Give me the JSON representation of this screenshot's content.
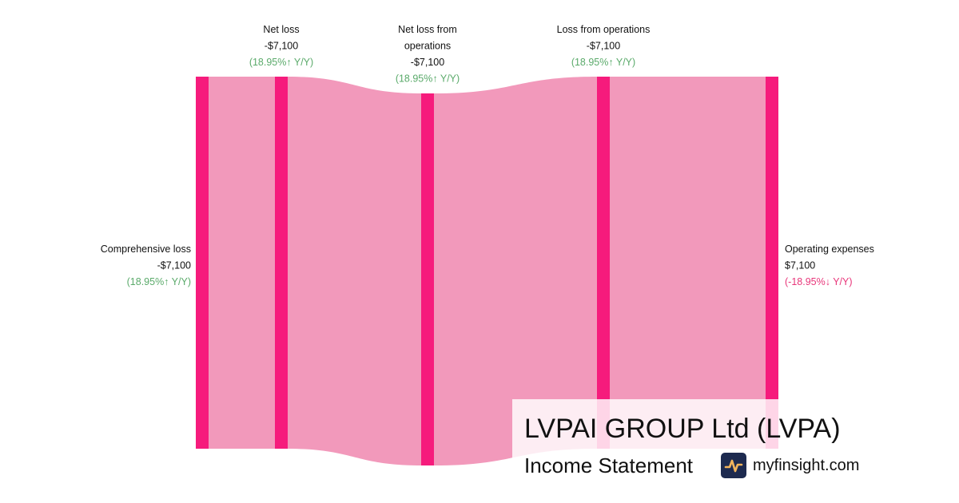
{
  "chart_data": {
    "type": "sankey",
    "colors": {
      "node": "#f61b7c",
      "link": "#f299bb",
      "positive_change": "#5aaa6a",
      "negative_change": "#e8367a"
    },
    "nodes": [
      {
        "id": "comprehensive_loss",
        "name": "Comprehensive loss",
        "value_label": "-$7,100",
        "change_label": "(18.95%↑ Y/Y)",
        "change_direction": "positive",
        "value": -7100
      },
      {
        "id": "net_loss",
        "name": "Net loss",
        "value_label": "-$7,100",
        "change_label": "(18.95%↑ Y/Y)",
        "change_direction": "positive",
        "value": -7100
      },
      {
        "id": "net_loss_from_operations",
        "name": "Net loss from operations",
        "name_lines": [
          "Net loss from",
          "operations"
        ],
        "value_label": "-$7,100",
        "change_label": "(18.95%↑ Y/Y)",
        "change_direction": "positive",
        "value": -7100
      },
      {
        "id": "loss_from_operations",
        "name": "Loss from operations",
        "value_label": "-$7,100",
        "change_label": "(18.95%↑ Y/Y)",
        "change_direction": "positive",
        "value": -7100
      },
      {
        "id": "operating_expenses",
        "name": "Operating expenses",
        "value_label": "$7,100",
        "change_label": "(-18.95%↓ Y/Y)",
        "change_direction": "negative",
        "value": 7100
      }
    ],
    "links": [
      {
        "source": "comprehensive_loss",
        "target": "net_loss",
        "value": 7100
      },
      {
        "source": "net_loss",
        "target": "net_loss_from_operations",
        "value": 7100
      },
      {
        "source": "net_loss_from_operations",
        "target": "loss_from_operations",
        "value": 7100
      },
      {
        "source": "loss_from_operations",
        "target": "operating_expenses",
        "value": 7100
      }
    ]
  },
  "branding": {
    "company_title": "LVPAI GROUP Ltd (LVPA)",
    "subtitle": "Income Statement",
    "logo_icon": "pulse-line-icon",
    "site": "myfinsight.com"
  }
}
